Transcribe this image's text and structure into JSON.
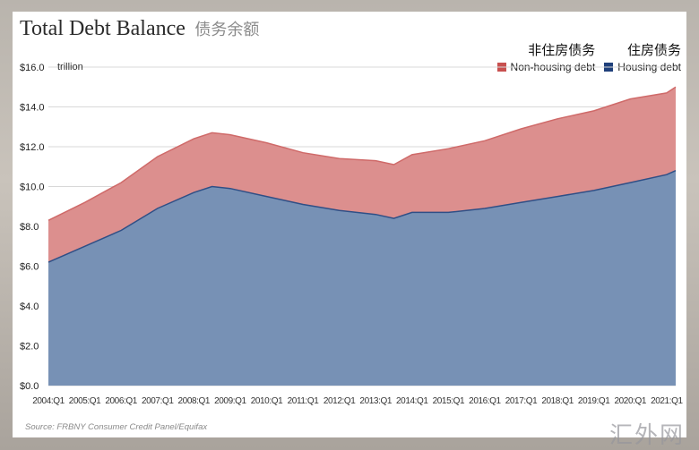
{
  "title": "Total Debt Balance",
  "title_cn": "债务余额",
  "unit_label": "trillion",
  "source": "Source: FRBNY Consumer Credit Panel/Equifax",
  "watermark": "汇外网",
  "legend": [
    {
      "cn": "非住房债务",
      "en": "Non-housing debt",
      "color": "#c8504f"
    },
    {
      "cn": "住房债务",
      "en": "Housing debt",
      "color": "#1f3f7a"
    }
  ],
  "chart_data": {
    "type": "area",
    "stacked": true,
    "title": "Total Debt Balance",
    "xlabel": "",
    "ylabel": "",
    "ylim": [
      0,
      16
    ],
    "grid": true,
    "legend_position": "top-right",
    "y_ticks": [
      "$0.0",
      "$2.0",
      "$4.0",
      "$6.0",
      "$8.0",
      "$10.0",
      "$12.0",
      "$14.0",
      "$16.0"
    ],
    "x_tick_labels": [
      "2004:Q1",
      "2005:Q1",
      "2006:Q1",
      "2007:Q1",
      "2008:Q1",
      "2009:Q1",
      "2010:Q1",
      "2011:Q1",
      "2012:Q1",
      "2013:Q1",
      "2014:Q1",
      "2015:Q1",
      "2016:Q1",
      "2017:Q1",
      "2018:Q1",
      "2019:Q1",
      "2020:Q1",
      "2021:Q1"
    ],
    "x": [
      "2004:Q1",
      "2005:Q1",
      "2006:Q1",
      "2007:Q1",
      "2008:Q1",
      "2008:Q3",
      "2009:Q1",
      "2010:Q1",
      "2011:Q1",
      "2012:Q1",
      "2013:Q1",
      "2013:Q3",
      "2014:Q1",
      "2015:Q1",
      "2016:Q1",
      "2017:Q1",
      "2018:Q1",
      "2019:Q1",
      "2020:Q1",
      "2021:Q1",
      "2021:Q2"
    ],
    "series": [
      {
        "name": "Housing debt",
        "color": "#7791b5",
        "values": [
          6.2,
          7.0,
          7.8,
          8.9,
          9.7,
          10.0,
          9.9,
          9.5,
          9.1,
          8.8,
          8.6,
          8.4,
          8.7,
          8.7,
          8.9,
          9.2,
          9.5,
          9.8,
          10.2,
          10.6,
          10.8
        ]
      },
      {
        "name": "Non-housing debt",
        "color": "#dc8f8e",
        "values": [
          2.1,
          2.2,
          2.4,
          2.6,
          2.7,
          2.7,
          2.7,
          2.7,
          2.6,
          2.6,
          2.7,
          2.7,
          2.9,
          3.2,
          3.4,
          3.7,
          3.9,
          4.0,
          4.2,
          4.1,
          4.2
        ]
      }
    ]
  }
}
